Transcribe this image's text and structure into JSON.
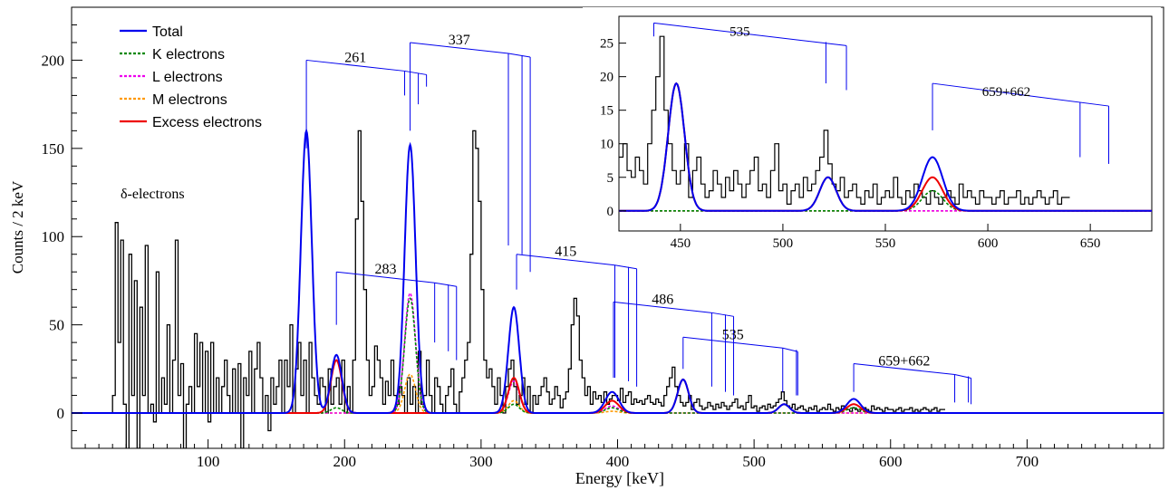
{
  "chart_data": {
    "type": "line",
    "xlabel": "Energy [keV]",
    "ylabel": "Counts / 2 keV",
    "xlim": [
      0,
      800
    ],
    "ylim": [
      -20,
      230
    ],
    "xticks": [
      100,
      200,
      300,
      400,
      500,
      600,
      700
    ],
    "yticks": [
      0,
      50,
      100,
      150,
      200
    ],
    "annotation": "δ-electrons",
    "legend": [
      {
        "name": "Total",
        "color": "#0000ee",
        "style": "solid"
      },
      {
        "name": "K electrons",
        "color": "#008800",
        "style": "dotted"
      },
      {
        "name": "L electrons",
        "color": "#ee00ee",
        "style": "dotted"
      },
      {
        "name": "M electrons",
        "color": "#ff9900",
        "style": "dotted"
      },
      {
        "name": "Excess electrons",
        "color": "#ee0000",
        "style": "solid"
      }
    ],
    "peaks": [
      {
        "center": 172,
        "sigma": 4,
        "total": 160,
        "excess": 0,
        "k": 0,
        "l": 0,
        "m": 0
      },
      {
        "center": 194,
        "sigma": 4,
        "total": 33,
        "excess": 30,
        "k": 3,
        "l": 0,
        "m": 0
      },
      {
        "center": 248,
        "sigma": 4,
        "total": 152,
        "excess": 0,
        "k": 65,
        "l": 68,
        "m": 22
      },
      {
        "center": 324,
        "sigma": 4,
        "total": 60,
        "excess": 20,
        "k": 5,
        "l": 18,
        "m": 7
      },
      {
        "center": 396,
        "sigma": 5,
        "total": 12,
        "excess": 7,
        "k": 3,
        "l": 4,
        "m": 1
      },
      {
        "center": 448,
        "sigma": 4,
        "total": 19,
        "excess": 19,
        "k": 0,
        "l": 0,
        "m": 0
      },
      {
        "center": 522,
        "sigma": 4,
        "total": 5,
        "excess": 5,
        "k": 0,
        "l": 0,
        "m": 0
      },
      {
        "center": 573,
        "sigma": 5,
        "total": 8,
        "excess": 5,
        "k": 3,
        "l": 0,
        "m": 0
      }
    ],
    "histogram": {
      "x_start": 30,
      "bin_width": 2,
      "counts": [
        10,
        108,
        40,
        98,
        5,
        -25,
        90,
        10,
        75,
        -20,
        60,
        10,
        95,
        0,
        5,
        -5,
        80,
        0,
        20,
        5,
        50,
        0,
        30,
        98,
        10,
        28,
        -20,
        5,
        15,
        0,
        45,
        15,
        40,
        0,
        35,
        -5,
        40,
        0,
        20,
        0,
        15,
        30,
        10,
        0,
        25,
        0,
        28,
        -20,
        20,
        10,
        35,
        0,
        25,
        40,
        20,
        0,
        10,
        -10,
        20,
        5,
        15,
        30,
        0,
        30,
        15,
        50,
        0,
        25,
        40,
        10,
        30,
        0,
        40,
        20,
        10,
        5,
        20,
        15,
        0,
        25,
        5,
        15,
        20,
        5,
        30,
        0,
        15,
        0,
        30,
        110,
        160,
        120,
        70,
        30,
        10,
        15,
        38,
        30,
        20,
        5,
        18,
        10,
        30,
        10,
        5,
        15,
        10,
        0,
        20,
        5,
        15,
        0,
        35,
        5,
        10,
        30,
        10,
        0,
        20,
        15,
        5,
        0,
        10,
        15,
        25,
        5,
        0,
        12,
        20,
        30,
        40,
        90,
        160,
        150,
        120,
        70,
        30,
        20,
        25,
        15,
        5,
        20,
        10,
        0,
        15,
        25,
        30,
        15,
        5,
        10,
        20,
        5,
        15,
        0,
        10,
        5,
        10,
        15,
        20,
        12,
        5,
        8,
        15,
        10,
        3,
        8,
        12,
        25,
        50,
        65,
        55,
        30,
        20,
        10,
        15,
        5,
        12,
        8,
        10,
        6,
        12,
        5,
        8,
        10,
        10,
        7,
        14,
        6,
        10,
        12,
        5,
        8,
        6,
        7,
        5,
        8,
        10,
        6,
        5,
        8,
        6,
        4,
        10,
        15,
        20,
        26,
        15,
        10,
        6,
        4,
        6,
        10,
        2,
        6,
        8,
        4,
        2,
        3,
        6,
        4,
        2,
        5,
        3,
        6,
        4,
        2,
        4,
        6,
        8,
        3,
        4,
        2,
        6,
        10,
        3,
        4,
        1,
        3,
        4,
        2,
        5,
        3,
        4,
        6,
        8,
        12,
        7,
        4,
        3,
        5,
        2,
        3,
        4,
        2,
        1,
        3,
        2,
        4,
        1,
        2,
        3,
        2,
        5,
        2,
        1,
        3,
        2,
        4,
        3,
        2,
        1,
        3,
        2,
        1,
        2,
        3,
        2,
        1,
        4,
        2,
        3,
        2,
        1,
        3,
        2,
        2,
        1,
        2,
        3,
        1,
        2,
        2,
        3,
        1,
        2,
        1,
        2,
        3,
        2,
        1,
        2,
        3,
        1,
        2,
        2
      ]
    },
    "brackets": [
      {
        "label": "261",
        "x0": 172,
        "x1": 260,
        "y": 200,
        "x_drops": [
          172,
          244,
          254,
          260
        ],
        "drop_to": [
          150,
          180,
          175,
          185
        ]
      },
      {
        "label": "337",
        "x0": 248,
        "x1": 336,
        "y": 210,
        "x_drops": [
          248,
          320,
          330,
          336
        ],
        "drop_to": [
          160,
          95,
          90,
          80
        ]
      },
      {
        "label": "283",
        "x0": 194,
        "x1": 282,
        "y": 80,
        "x_drops": [
          194,
          266,
          276,
          282
        ],
        "drop_to": [
          50,
          40,
          35,
          30
        ]
      },
      {
        "label": "415",
        "x0": 326,
        "x1": 414,
        "y": 90,
        "x_drops": [
          326,
          398,
          408,
          414
        ],
        "drop_to": [
          70,
          20,
          18,
          15
        ]
      },
      {
        "label": "486",
        "x0": 397,
        "x1": 485,
        "y": 63,
        "x_drops": [
          397,
          469,
          479,
          485
        ],
        "drop_to": [
          20,
          15,
          12,
          10
        ]
      },
      {
        "label": "535",
        "x0": 448,
        "x1": 532,
        "y": 43,
        "x_drops": [
          448,
          521,
          531,
          532
        ],
        "drop_to": [
          25,
          12,
          10,
          10
        ]
      },
      {
        "label": "659+662",
        "x0": 573,
        "x1": 659,
        "y": 28,
        "x_drops": [
          573,
          647,
          657,
          659
        ],
        "drop_to": [
          12,
          6,
          6,
          5
        ]
      }
    ],
    "inset": {
      "xlim": [
        420,
        680
      ],
      "ylim": [
        -3,
        29
      ],
      "xticks": [
        450,
        500,
        550,
        600,
        650
      ],
      "yticks": [
        0,
        5,
        10,
        15,
        20,
        25
      ],
      "brackets": [
        {
          "label": "535",
          "y": 28,
          "x_drops": [
            437,
            521,
            531
          ],
          "drop_to": [
            26,
            19,
            18
          ]
        },
        {
          "label": "659+662",
          "y": 19,
          "x_drops": [
            573,
            645,
            659
          ],
          "drop_to": [
            12,
            8,
            7
          ]
        }
      ]
    }
  }
}
